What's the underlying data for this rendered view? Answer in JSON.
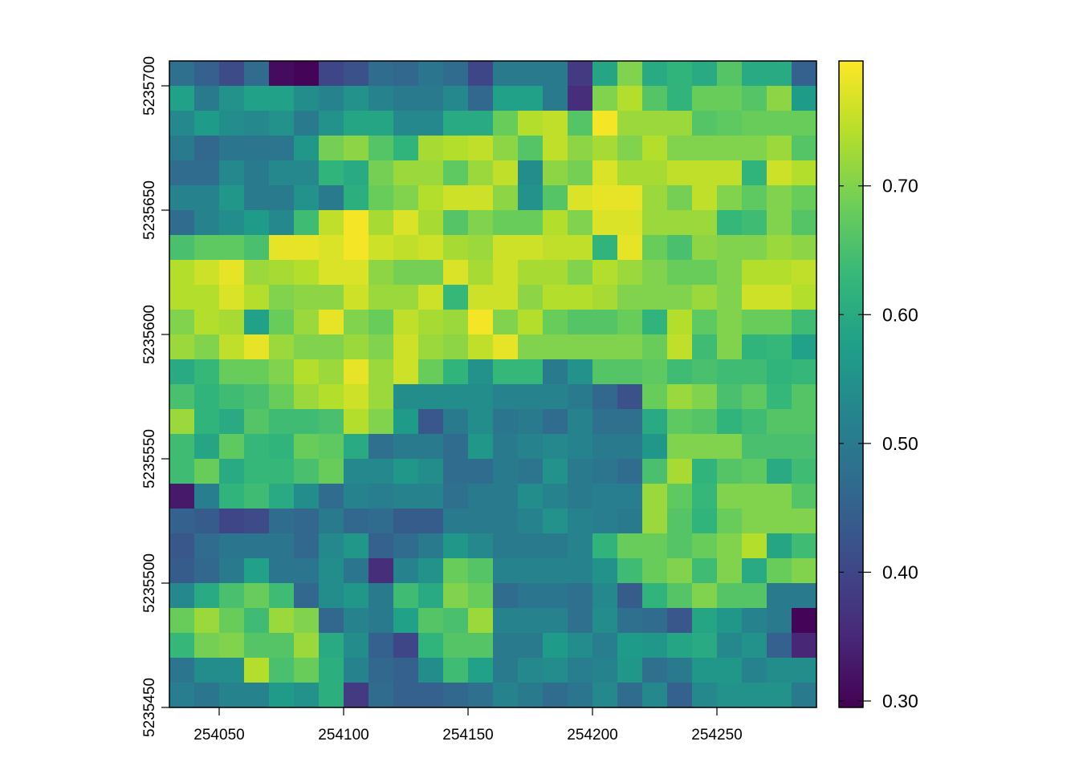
{
  "chart_data": {
    "type": "heatmap",
    "title": "",
    "xlabel": "",
    "ylabel": "",
    "x_ticks": [
      "254050",
      "254100",
      "254150",
      "254200",
      "254250"
    ],
    "x_tick_values": [
      254050,
      254100,
      254150,
      254200,
      254250
    ],
    "y_ticks": [
      "5235450",
      "5235500",
      "5235550",
      "5235600",
      "5235650",
      "5235700"
    ],
    "y_tick_values": [
      5235450,
      5235500,
      5235550,
      5235600,
      5235650,
      5235700
    ],
    "xlim": [
      254030,
      254290
    ],
    "ylim": [
      5235450,
      5235710
    ],
    "cell_size": 10,
    "legend_ticks": [
      "0.30",
      "0.40",
      "0.50",
      "0.60",
      "0.70"
    ],
    "legend_tick_values": [
      0.3,
      0.4,
      0.5,
      0.6,
      0.7
    ],
    "legend_range": [
      0.295,
      0.797
    ],
    "colormap": "viridis",
    "grid": [
      [
        0.48,
        0.45,
        0.41,
        0.47,
        0.31,
        0.3,
        0.4,
        0.42,
        0.47,
        0.46,
        0.49,
        0.47,
        0.4,
        0.5,
        0.5,
        0.5,
        0.38,
        0.59,
        0.7,
        0.6,
        0.62,
        0.6,
        0.66,
        0.6,
        0.6,
        0.45
      ],
      [
        0.58,
        0.5,
        0.55,
        0.58,
        0.58,
        0.54,
        0.52,
        0.55,
        0.52,
        0.5,
        0.5,
        0.53,
        0.46,
        0.58,
        0.58,
        0.5,
        0.36,
        0.7,
        0.74,
        0.66,
        0.62,
        0.68,
        0.68,
        0.66,
        0.71,
        0.57
      ],
      [
        0.53,
        0.57,
        0.54,
        0.53,
        0.55,
        0.5,
        0.55,
        0.59,
        0.59,
        0.53,
        0.53,
        0.6,
        0.6,
        0.68,
        0.74,
        0.75,
        0.66,
        0.79,
        0.72,
        0.72,
        0.72,
        0.66,
        0.67,
        0.68,
        0.68,
        0.68
      ],
      [
        0.5,
        0.46,
        0.49,
        0.49,
        0.49,
        0.56,
        0.69,
        0.71,
        0.66,
        0.62,
        0.73,
        0.74,
        0.75,
        0.71,
        0.66,
        0.75,
        0.71,
        0.73,
        0.7,
        0.74,
        0.7,
        0.7,
        0.7,
        0.7,
        0.72,
        0.66
      ],
      [
        0.47,
        0.47,
        0.53,
        0.5,
        0.53,
        0.53,
        0.62,
        0.6,
        0.69,
        0.72,
        0.72,
        0.67,
        0.72,
        0.75,
        0.54,
        0.71,
        0.69,
        0.77,
        0.73,
        0.73,
        0.75,
        0.75,
        0.75,
        0.62,
        0.76,
        0.74
      ],
      [
        0.52,
        0.52,
        0.56,
        0.5,
        0.5,
        0.55,
        0.5,
        0.61,
        0.68,
        0.7,
        0.74,
        0.76,
        0.76,
        0.71,
        0.55,
        0.66,
        0.77,
        0.78,
        0.78,
        0.72,
        0.69,
        0.75,
        0.7,
        0.67,
        0.7,
        0.68
      ],
      [
        0.47,
        0.52,
        0.54,
        0.57,
        0.53,
        0.64,
        0.75,
        0.79,
        0.73,
        0.77,
        0.73,
        0.66,
        0.7,
        0.68,
        0.68,
        0.74,
        0.7,
        0.77,
        0.77,
        0.72,
        0.72,
        0.72,
        0.63,
        0.64,
        0.7,
        0.66
      ],
      [
        0.65,
        0.67,
        0.67,
        0.65,
        0.78,
        0.78,
        0.77,
        0.79,
        0.76,
        0.75,
        0.76,
        0.73,
        0.72,
        0.76,
        0.76,
        0.75,
        0.75,
        0.62,
        0.78,
        0.68,
        0.65,
        0.71,
        0.7,
        0.7,
        0.72,
        0.71
      ],
      [
        0.74,
        0.76,
        0.78,
        0.72,
        0.73,
        0.74,
        0.77,
        0.77,
        0.71,
        0.69,
        0.69,
        0.77,
        0.73,
        0.76,
        0.73,
        0.73,
        0.7,
        0.74,
        0.72,
        0.7,
        0.68,
        0.68,
        0.7,
        0.74,
        0.74,
        0.75
      ],
      [
        0.74,
        0.74,
        0.77,
        0.74,
        0.7,
        0.71,
        0.71,
        0.76,
        0.72,
        0.72,
        0.76,
        0.63,
        0.76,
        0.76,
        0.71,
        0.74,
        0.74,
        0.73,
        0.7,
        0.7,
        0.7,
        0.72,
        0.7,
        0.76,
        0.76,
        0.74
      ],
      [
        0.7,
        0.74,
        0.73,
        0.58,
        0.68,
        0.72,
        0.78,
        0.7,
        0.68,
        0.75,
        0.73,
        0.72,
        0.79,
        0.7,
        0.74,
        0.68,
        0.66,
        0.66,
        0.68,
        0.62,
        0.74,
        0.67,
        0.7,
        0.68,
        0.68,
        0.64
      ],
      [
        0.72,
        0.7,
        0.75,
        0.78,
        0.72,
        0.7,
        0.7,
        0.72,
        0.7,
        0.76,
        0.72,
        0.71,
        0.75,
        0.78,
        0.7,
        0.7,
        0.7,
        0.7,
        0.7,
        0.68,
        0.75,
        0.64,
        0.7,
        0.62,
        0.63,
        0.58
      ],
      [
        0.6,
        0.63,
        0.68,
        0.68,
        0.7,
        0.74,
        0.72,
        0.78,
        0.72,
        0.76,
        0.68,
        0.62,
        0.55,
        0.63,
        0.63,
        0.5,
        0.55,
        0.66,
        0.66,
        0.67,
        0.64,
        0.65,
        0.64,
        0.64,
        0.62,
        0.63
      ],
      [
        0.65,
        0.62,
        0.64,
        0.65,
        0.68,
        0.72,
        0.74,
        0.76,
        0.72,
        0.54,
        0.54,
        0.54,
        0.54,
        0.52,
        0.52,
        0.52,
        0.5,
        0.46,
        0.42,
        0.68,
        0.72,
        0.7,
        0.65,
        0.67,
        0.63,
        0.66
      ],
      [
        0.72,
        0.62,
        0.6,
        0.66,
        0.64,
        0.64,
        0.65,
        0.74,
        0.7,
        0.57,
        0.43,
        0.5,
        0.54,
        0.49,
        0.5,
        0.47,
        0.52,
        0.48,
        0.48,
        0.6,
        0.67,
        0.66,
        0.62,
        0.64,
        0.66,
        0.66
      ],
      [
        0.64,
        0.59,
        0.67,
        0.63,
        0.62,
        0.68,
        0.67,
        0.6,
        0.48,
        0.5,
        0.5,
        0.47,
        0.56,
        0.5,
        0.52,
        0.53,
        0.52,
        0.5,
        0.5,
        0.56,
        0.7,
        0.7,
        0.7,
        0.65,
        0.65,
        0.65
      ],
      [
        0.64,
        0.68,
        0.6,
        0.63,
        0.63,
        0.65,
        0.68,
        0.53,
        0.53,
        0.56,
        0.54,
        0.47,
        0.47,
        0.5,
        0.49,
        0.55,
        0.5,
        0.49,
        0.47,
        0.65,
        0.73,
        0.62,
        0.66,
        0.67,
        0.6,
        0.64
      ],
      [
        0.33,
        0.51,
        0.62,
        0.64,
        0.6,
        0.54,
        0.47,
        0.52,
        0.51,
        0.52,
        0.52,
        0.48,
        0.5,
        0.5,
        0.54,
        0.52,
        0.5,
        0.51,
        0.51,
        0.72,
        0.67,
        0.63,
        0.7,
        0.7,
        0.7,
        0.66
      ],
      [
        0.45,
        0.44,
        0.4,
        0.41,
        0.47,
        0.46,
        0.5,
        0.46,
        0.47,
        0.44,
        0.44,
        0.5,
        0.5,
        0.5,
        0.52,
        0.55,
        0.52,
        0.51,
        0.5,
        0.72,
        0.66,
        0.62,
        0.68,
        0.7,
        0.7,
        0.7
      ],
      [
        0.43,
        0.47,
        0.49,
        0.49,
        0.49,
        0.46,
        0.53,
        0.56,
        0.45,
        0.47,
        0.5,
        0.56,
        0.53,
        0.5,
        0.5,
        0.5,
        0.52,
        0.62,
        0.68,
        0.68,
        0.66,
        0.68,
        0.7,
        0.74,
        0.59,
        0.64
      ],
      [
        0.44,
        0.46,
        0.5,
        0.58,
        0.49,
        0.49,
        0.54,
        0.49,
        0.36,
        0.52,
        0.55,
        0.68,
        0.66,
        0.52,
        0.52,
        0.52,
        0.52,
        0.55,
        0.64,
        0.68,
        0.7,
        0.64,
        0.7,
        0.6,
        0.68,
        0.7
      ],
      [
        0.53,
        0.6,
        0.65,
        0.68,
        0.64,
        0.46,
        0.54,
        0.56,
        0.5,
        0.64,
        0.6,
        0.7,
        0.68,
        0.47,
        0.49,
        0.49,
        0.48,
        0.53,
        0.44,
        0.62,
        0.66,
        0.7,
        0.66,
        0.66,
        0.5,
        0.5
      ],
      [
        0.68,
        0.72,
        0.68,
        0.64,
        0.72,
        0.7,
        0.46,
        0.52,
        0.5,
        0.58,
        0.66,
        0.65,
        0.72,
        0.52,
        0.52,
        0.52,
        0.48,
        0.54,
        0.48,
        0.47,
        0.43,
        0.59,
        0.56,
        0.52,
        0.5,
        0.3
      ],
      [
        0.63,
        0.69,
        0.7,
        0.66,
        0.66,
        0.72,
        0.6,
        0.54,
        0.45,
        0.4,
        0.62,
        0.66,
        0.66,
        0.5,
        0.5,
        0.57,
        0.54,
        0.51,
        0.57,
        0.56,
        0.59,
        0.6,
        0.53,
        0.55,
        0.45,
        0.35
      ],
      [
        0.49,
        0.54,
        0.54,
        0.74,
        0.65,
        0.68,
        0.61,
        0.52,
        0.46,
        0.45,
        0.54,
        0.64,
        0.58,
        0.5,
        0.53,
        0.54,
        0.51,
        0.52,
        0.56,
        0.48,
        0.5,
        0.56,
        0.56,
        0.52,
        0.54,
        0.54
      ],
      [
        0.51,
        0.49,
        0.52,
        0.52,
        0.57,
        0.55,
        0.61,
        0.38,
        0.47,
        0.45,
        0.45,
        0.46,
        0.48,
        0.52,
        0.5,
        0.47,
        0.49,
        0.53,
        0.47,
        0.53,
        0.45,
        0.53,
        0.55,
        0.55,
        0.55,
        0.5
      ]
    ]
  }
}
